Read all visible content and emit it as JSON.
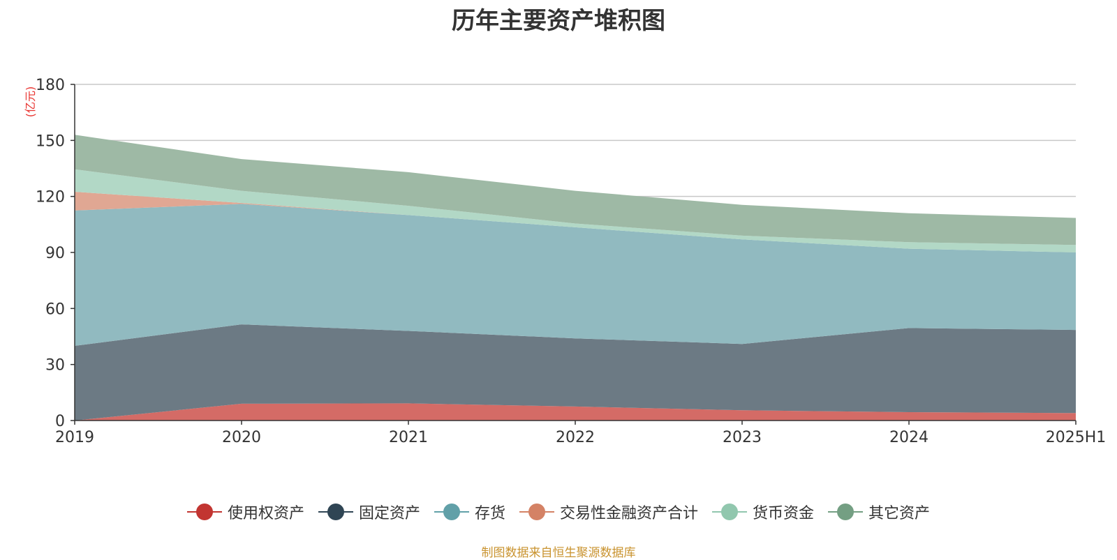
{
  "chart_data": {
    "type": "area",
    "stacked": true,
    "title": "历年主要资产堆积图",
    "ylabel": "(亿元)",
    "xlabel": "",
    "categories": [
      "2019",
      "2020",
      "2021",
      "2022",
      "2023",
      "2024",
      "2025H1"
    ],
    "ylim": [
      0,
      180
    ],
    "yticks": [
      0,
      30,
      60,
      90,
      120,
      150,
      180
    ],
    "grid": true,
    "legend_position": "bottom",
    "series": [
      {
        "name": "使用权资产",
        "color": "#c23531",
        "fill": "#d46b66",
        "values": [
          0,
          9,
          9.2,
          7.5,
          5.5,
          4.5,
          4
        ]
      },
      {
        "name": "固定资产",
        "color": "#2f4554",
        "fill": "#6c7a84",
        "values": [
          40,
          42.5,
          38.8,
          36.5,
          35.5,
          45,
          44.5
        ]
      },
      {
        "name": "存货",
        "color": "#61a0a8",
        "fill": "#91bac0",
        "values": [
          72.5,
          64.5,
          62,
          59.5,
          56,
          42.5,
          41.5
        ]
      },
      {
        "name": "交易性金融资产合计",
        "color": "#d48265",
        "fill": "#e0a793",
        "values": [
          10,
          0.5,
          0,
          0,
          0,
          0,
          0
        ]
      },
      {
        "name": "货币资金",
        "color": "#91c7ae",
        "fill": "#b2d8c6",
        "values": [
          12,
          6.5,
          5,
          2,
          2,
          3.5,
          4
        ]
      },
      {
        "name": "其它资产",
        "color": "#749f83",
        "fill": "#9eb9a5",
        "values": [
          18.5,
          17,
          18,
          17.5,
          16.5,
          15.5,
          14.5
        ]
      }
    ]
  },
  "source_note": "制图数据来自恒生聚源数据库"
}
